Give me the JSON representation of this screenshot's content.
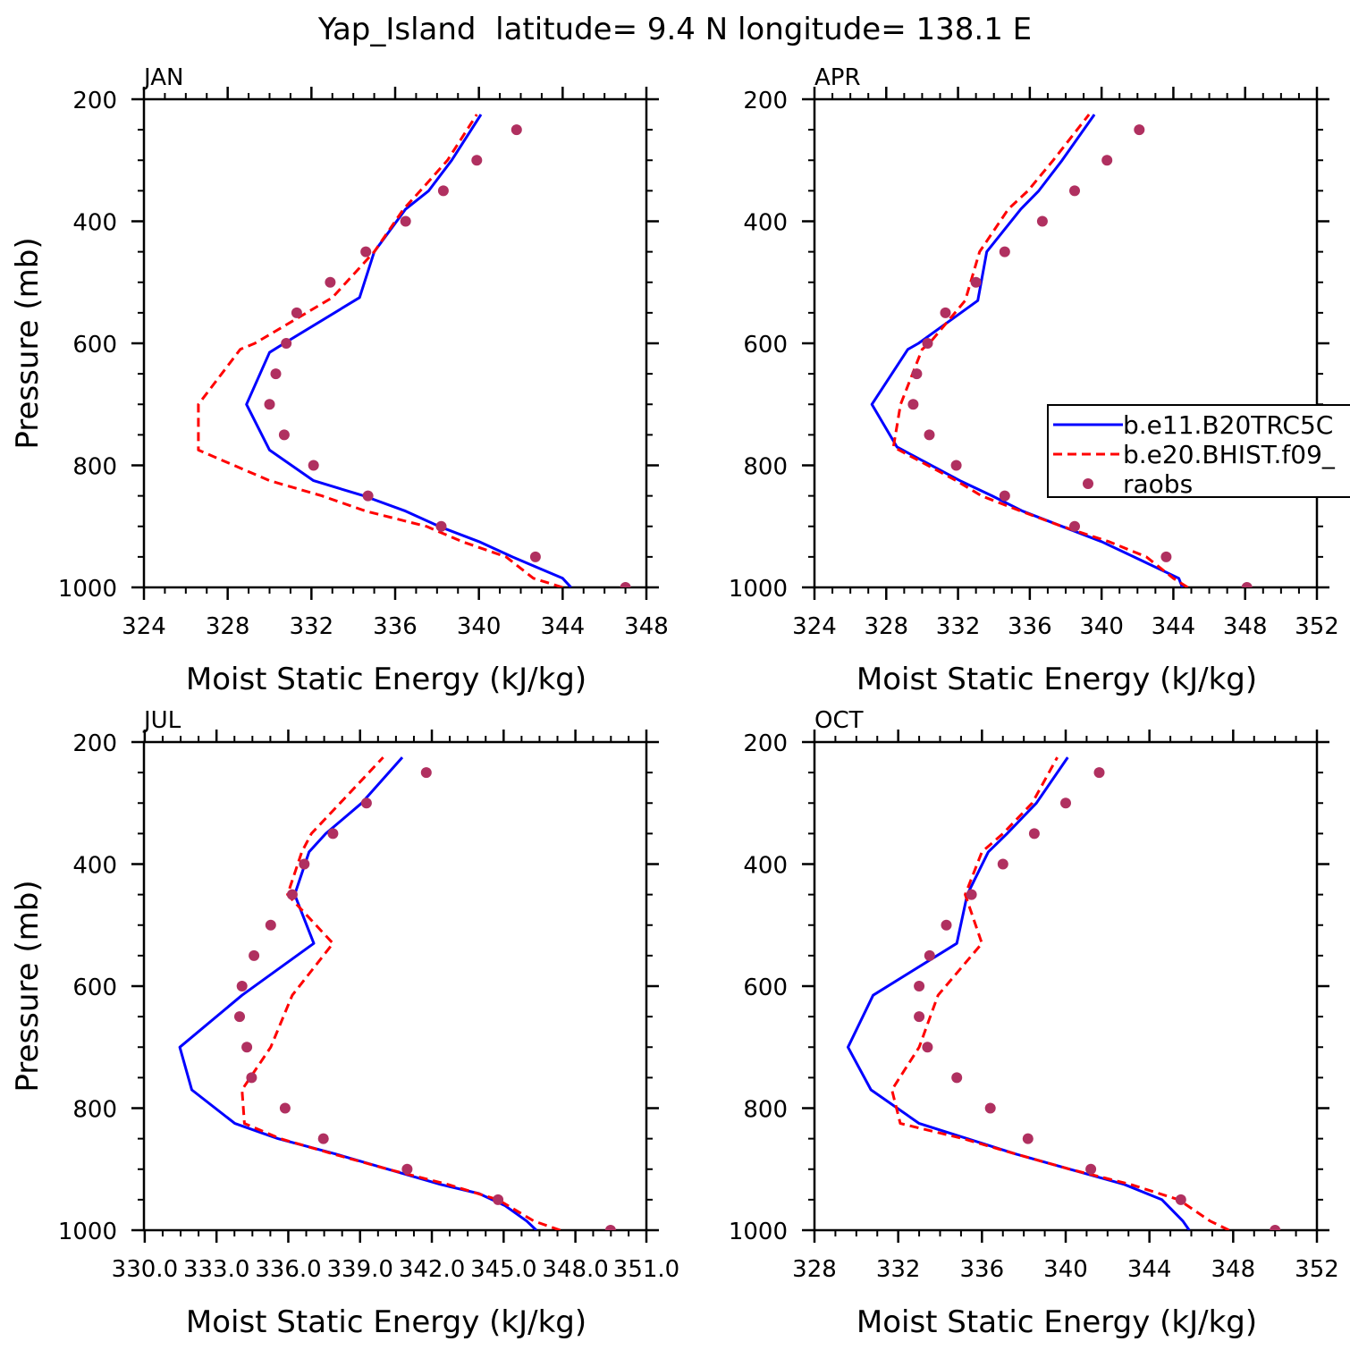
{
  "figure_title": "Yap_Island  latitude= 9.4 N longitude= 138.1 E",
  "legend": {
    "placement": "right of APR panel, clipped at figure edge",
    "entries": [
      {
        "label": "b.e11.B20TRC5C",
        "style": "solid",
        "color": "#0000ff"
      },
      {
        "label": "b.e20.BHIST.f09_",
        "style": "dashed",
        "color": "#ff0000"
      },
      {
        "label": "raobs",
        "style": "dot",
        "color": "#b03060"
      }
    ]
  },
  "colors": {
    "model1": "#0000ff",
    "model2": "#ff0000",
    "raobs": "#b03060"
  },
  "chart_data": [
    {
      "type": "line",
      "panel_label": "JAN",
      "xlabel": "Moist Static Energy (kJ/kg)",
      "ylabel": "Pressure (mb)",
      "xlim": [
        324,
        348
      ],
      "ylim": [
        1000,
        200
      ],
      "x_ticks": [
        "324",
        "328",
        "332",
        "336",
        "340",
        "344",
        "348"
      ],
      "x_tick_values": [
        324,
        328,
        332,
        336,
        340,
        344,
        348
      ],
      "y_ticks": [
        "200",
        "400",
        "600",
        "800",
        "1000"
      ],
      "y_tick_values": [
        200,
        400,
        600,
        800,
        1000
      ],
      "series": [
        {
          "name": "b.e11.B20TRC5C",
          "p": [
            1000,
            985,
            950,
            925,
            900,
            875,
            850,
            825,
            775,
            700,
            615,
            600,
            525,
            450,
            380,
            350,
            300,
            225
          ],
          "x": [
            344.4,
            344.0,
            341.6,
            340.0,
            338.1,
            336.5,
            334.5,
            332.1,
            330.0,
            328.9,
            330.0,
            330.7,
            334.3,
            335.0,
            336.5,
            337.6,
            338.7,
            340.1
          ]
        },
        {
          "name": "b.e20.BHIST.f09_",
          "p": [
            1000,
            985,
            950,
            925,
            900,
            875,
            850,
            825,
            775,
            700,
            610,
            600,
            525,
            450,
            380,
            350,
            300,
            225
          ],
          "x": [
            344.0,
            342.6,
            341.3,
            339.2,
            337.5,
            334.6,
            332.5,
            330.0,
            326.6,
            326.6,
            328.6,
            329.3,
            333.0,
            335.0,
            336.4,
            337.2,
            338.5,
            339.9
          ]
        },
        {
          "name": "raobs",
          "p": [
            1000,
            950,
            900,
            850,
            800,
            750,
            700,
            650,
            600,
            550,
            500,
            450,
            400,
            350,
            300,
            250
          ],
          "x": [
            347.0,
            342.7,
            338.2,
            334.7,
            332.1,
            330.7,
            330.0,
            330.3,
            330.8,
            331.3,
            332.9,
            334.6,
            336.5,
            338.3,
            339.9,
            341.8
          ]
        }
      ]
    },
    {
      "type": "line",
      "panel_label": "APR",
      "xlabel": "Moist Static Energy (kJ/kg)",
      "ylabel": "",
      "xlim": [
        324,
        352
      ],
      "ylim": [
        1000,
        200
      ],
      "x_ticks": [
        "324",
        "328",
        "332",
        "336",
        "340",
        "344",
        "348",
        "352"
      ],
      "x_tick_values": [
        324,
        328,
        332,
        336,
        340,
        344,
        348,
        352
      ],
      "y_ticks": [
        "200",
        "400",
        "600",
        "800",
        "1000"
      ],
      "y_tick_values": [
        200,
        400,
        600,
        800,
        1000
      ],
      "series": [
        {
          "name": "b.e11.B20TRC5C",
          "p": [
            1000,
            985,
            950,
            925,
            900,
            875,
            850,
            825,
            770,
            700,
            610,
            600,
            530,
            450,
            380,
            350,
            300,
            225
          ],
          "x": [
            344.5,
            344.3,
            341.8,
            340.0,
            337.8,
            335.6,
            333.9,
            332.1,
            328.6,
            327.2,
            329.2,
            329.8,
            333.1,
            333.6,
            335.5,
            336.5,
            337.8,
            339.6
          ]
        },
        {
          "name": "b.e20.BHIST.f09_",
          "p": [
            1000,
            985,
            950,
            925,
            900,
            875,
            850,
            825,
            770,
            700,
            610,
            600,
            530,
            450,
            380,
            350,
            300,
            225
          ],
          "x": [
            344.8,
            344.0,
            342.5,
            340.4,
            337.8,
            335.5,
            333.3,
            331.9,
            328.4,
            328.8,
            330.0,
            330.4,
            332.4,
            333.2,
            334.8,
            335.9,
            337.3,
            339.3
          ]
        },
        {
          "name": "raobs",
          "p": [
            1000,
            950,
            900,
            850,
            800,
            750,
            700,
            650,
            600,
            550,
            500,
            450,
            400,
            350,
            300,
            250
          ],
          "x": [
            348.1,
            343.6,
            338.5,
            334.6,
            331.9,
            330.4,
            329.5,
            329.7,
            330.3,
            331.3,
            333.0,
            334.6,
            336.7,
            338.5,
            340.3,
            342.1
          ]
        }
      ]
    },
    {
      "type": "line",
      "panel_label": "JUL",
      "xlabel": "Moist Static Energy (kJ/kg)",
      "ylabel": "Pressure (mb)",
      "xlim": [
        330,
        351
      ],
      "ylim": [
        1000,
        200
      ],
      "x_ticks": [
        "330.0",
        "333.0",
        "336.0",
        "339.0",
        "342.0",
        "345.0",
        "348.0",
        "351.0"
      ],
      "x_tick_values": [
        330.0333,
        333.0333,
        336.0333,
        339.0333,
        342.0333,
        345.0333,
        348.0333,
        351.0
      ],
      "y_ticks": [
        "200",
        "400",
        "600",
        "800",
        "1000"
      ],
      "y_tick_values": [
        200,
        400,
        600,
        800,
        1000
      ],
      "series": [
        {
          "name": "b.e11.B20TRC5C",
          "p": [
            1000,
            985,
            960,
            940,
            925,
            900,
            875,
            850,
            825,
            770,
            700,
            615,
            530,
            450,
            380,
            350,
            300,
            225
          ],
          "x": [
            346.4,
            346.0,
            345.1,
            344.0,
            342.4,
            340.2,
            338.0,
            335.6,
            333.8,
            332.0,
            331.5,
            334.1,
            337.1,
            336.3,
            336.9,
            337.6,
            339.1,
            340.8
          ]
        },
        {
          "name": "b.e20.BHIST.f09_",
          "p": [
            1000,
            985,
            950,
            925,
            900,
            875,
            850,
            825,
            770,
            700,
            615,
            530,
            450,
            380,
            350,
            300,
            225
          ],
          "x": [
            347.4,
            346.3,
            344.8,
            342.7,
            340.2,
            337.9,
            335.7,
            334.2,
            334.1,
            335.3,
            336.2,
            337.9,
            336.0,
            336.6,
            337.0,
            338.2,
            340.0
          ]
        },
        {
          "name": "raobs",
          "p": [
            1000,
            950,
            900,
            850,
            800,
            750,
            700,
            650,
            600,
            550,
            500,
            450,
            400,
            350,
            300,
            250
          ],
          "x": [
            349.5,
            344.8,
            341.0,
            337.5,
            335.9,
            334.5,
            334.3,
            334.0,
            334.1,
            334.6,
            335.3,
            336.2,
            336.7,
            337.9,
            339.3,
            341.8
          ]
        }
      ]
    },
    {
      "type": "line",
      "panel_label": "OCT",
      "xlabel": "Moist Static Energy (kJ/kg)",
      "ylabel": "",
      "xlim": [
        328,
        352
      ],
      "ylim": [
        1000,
        200
      ],
      "x_ticks": [
        "328",
        "332",
        "336",
        "340",
        "344",
        "348",
        "352"
      ],
      "x_tick_values": [
        328,
        332,
        336,
        340,
        344,
        348,
        352
      ],
      "y_ticks": [
        "200",
        "400",
        "600",
        "800",
        "1000"
      ],
      "y_tick_values": [
        200,
        400,
        600,
        800,
        1000
      ],
      "series": [
        {
          "name": "b.e11.B20TRC5C",
          "p": [
            1000,
            985,
            950,
            925,
            900,
            875,
            850,
            825,
            770,
            700,
            615,
            530,
            450,
            380,
            350,
            300,
            225
          ],
          "x": [
            345.9,
            345.6,
            344.6,
            342.8,
            340.2,
            337.6,
            335.3,
            333.0,
            330.7,
            329.6,
            330.8,
            334.8,
            335.3,
            336.3,
            337.2,
            338.6,
            340.1
          ]
        },
        {
          "name": "b.e20.BHIST.f09_",
          "p": [
            1000,
            985,
            950,
            925,
            900,
            875,
            850,
            825,
            770,
            700,
            615,
            530,
            450,
            380,
            350,
            300,
            225
          ],
          "x": [
            347.8,
            346.9,
            345.4,
            343.1,
            340.2,
            337.6,
            335.1,
            332.1,
            331.7,
            333.0,
            333.9,
            336.0,
            335.2,
            336.0,
            337.0,
            338.4,
            339.6
          ]
        },
        {
          "name": "raobs",
          "p": [
            1000,
            950,
            900,
            850,
            800,
            750,
            700,
            650,
            600,
            550,
            500,
            450,
            400,
            350,
            300,
            250
          ],
          "x": [
            350.0,
            345.5,
            341.2,
            338.2,
            336.4,
            334.8,
            333.4,
            333.0,
            333.0,
            333.5,
            334.3,
            335.5,
            337.0,
            338.5,
            340.0,
            341.6
          ]
        }
      ]
    }
  ]
}
